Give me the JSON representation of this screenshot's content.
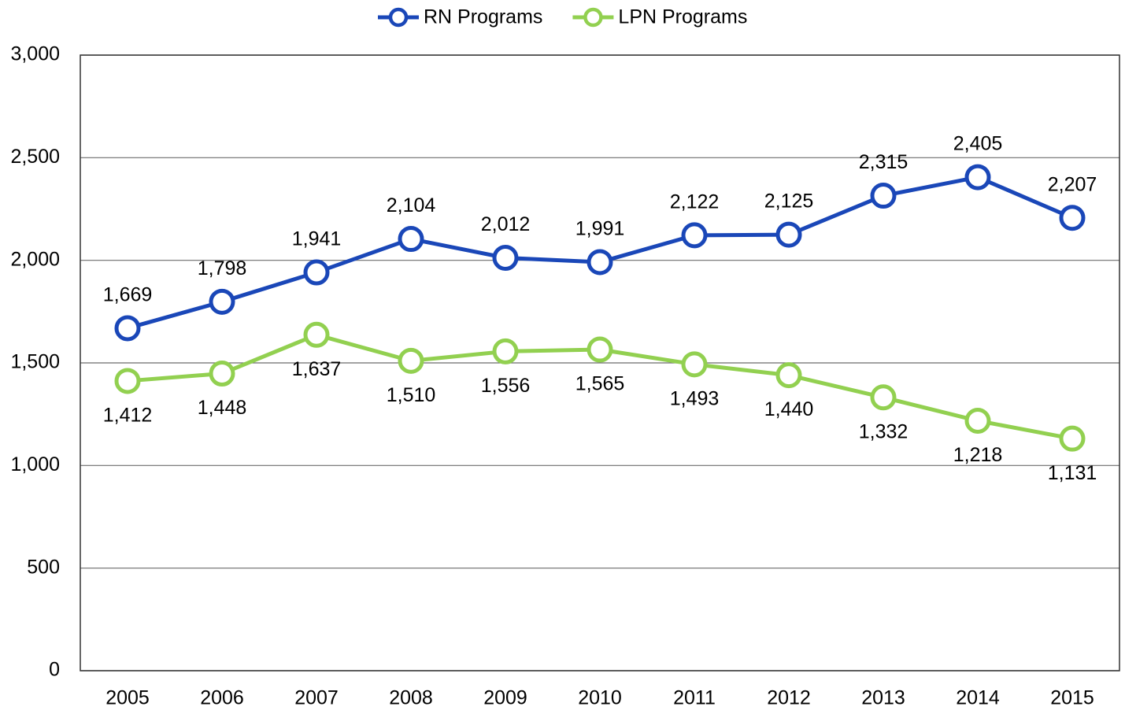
{
  "chart_data": {
    "type": "line",
    "categories": [
      "2005",
      "2006",
      "2007",
      "2008",
      "2009",
      "2010",
      "2011",
      "2012",
      "2013",
      "2014",
      "2015"
    ],
    "series": [
      {
        "name": "RN Programs",
        "color": "#1a47b8",
        "values": [
          1669,
          1798,
          1941,
          2104,
          2012,
          1991,
          2122,
          2125,
          2315,
          2405,
          2207
        ],
        "value_labels": [
          "1,669",
          "1,798",
          "1,941",
          "2,104",
          "2,012",
          "1,991",
          "2,122",
          "2,125",
          "2,315",
          "2,405",
          "2,207"
        ]
      },
      {
        "name": "LPN Programs",
        "color": "#92d050",
        "values": [
          1412,
          1448,
          1637,
          1510,
          1556,
          1565,
          1493,
          1440,
          1332,
          1218,
          1131
        ],
        "value_labels": [
          "1,412",
          "1,448",
          "1,637",
          "1,510",
          "1,556",
          "1,565",
          "1,493",
          "1,440",
          "1,332",
          "1,218",
          "1,131"
        ]
      }
    ],
    "ylim": [
      0,
      3000
    ],
    "yticks": [
      0,
      500,
      {
        "value": 1000,
        "label": "1,000"
      },
      {
        "value": 1500,
        "label": "1,500"
      },
      {
        "value": 2000,
        "label": "2,000"
      },
      {
        "value": 2500,
        "label": "2,500"
      },
      {
        "value": 3000,
        "label": "3,000"
      }
    ],
    "grid": true,
    "legend": "top"
  }
}
